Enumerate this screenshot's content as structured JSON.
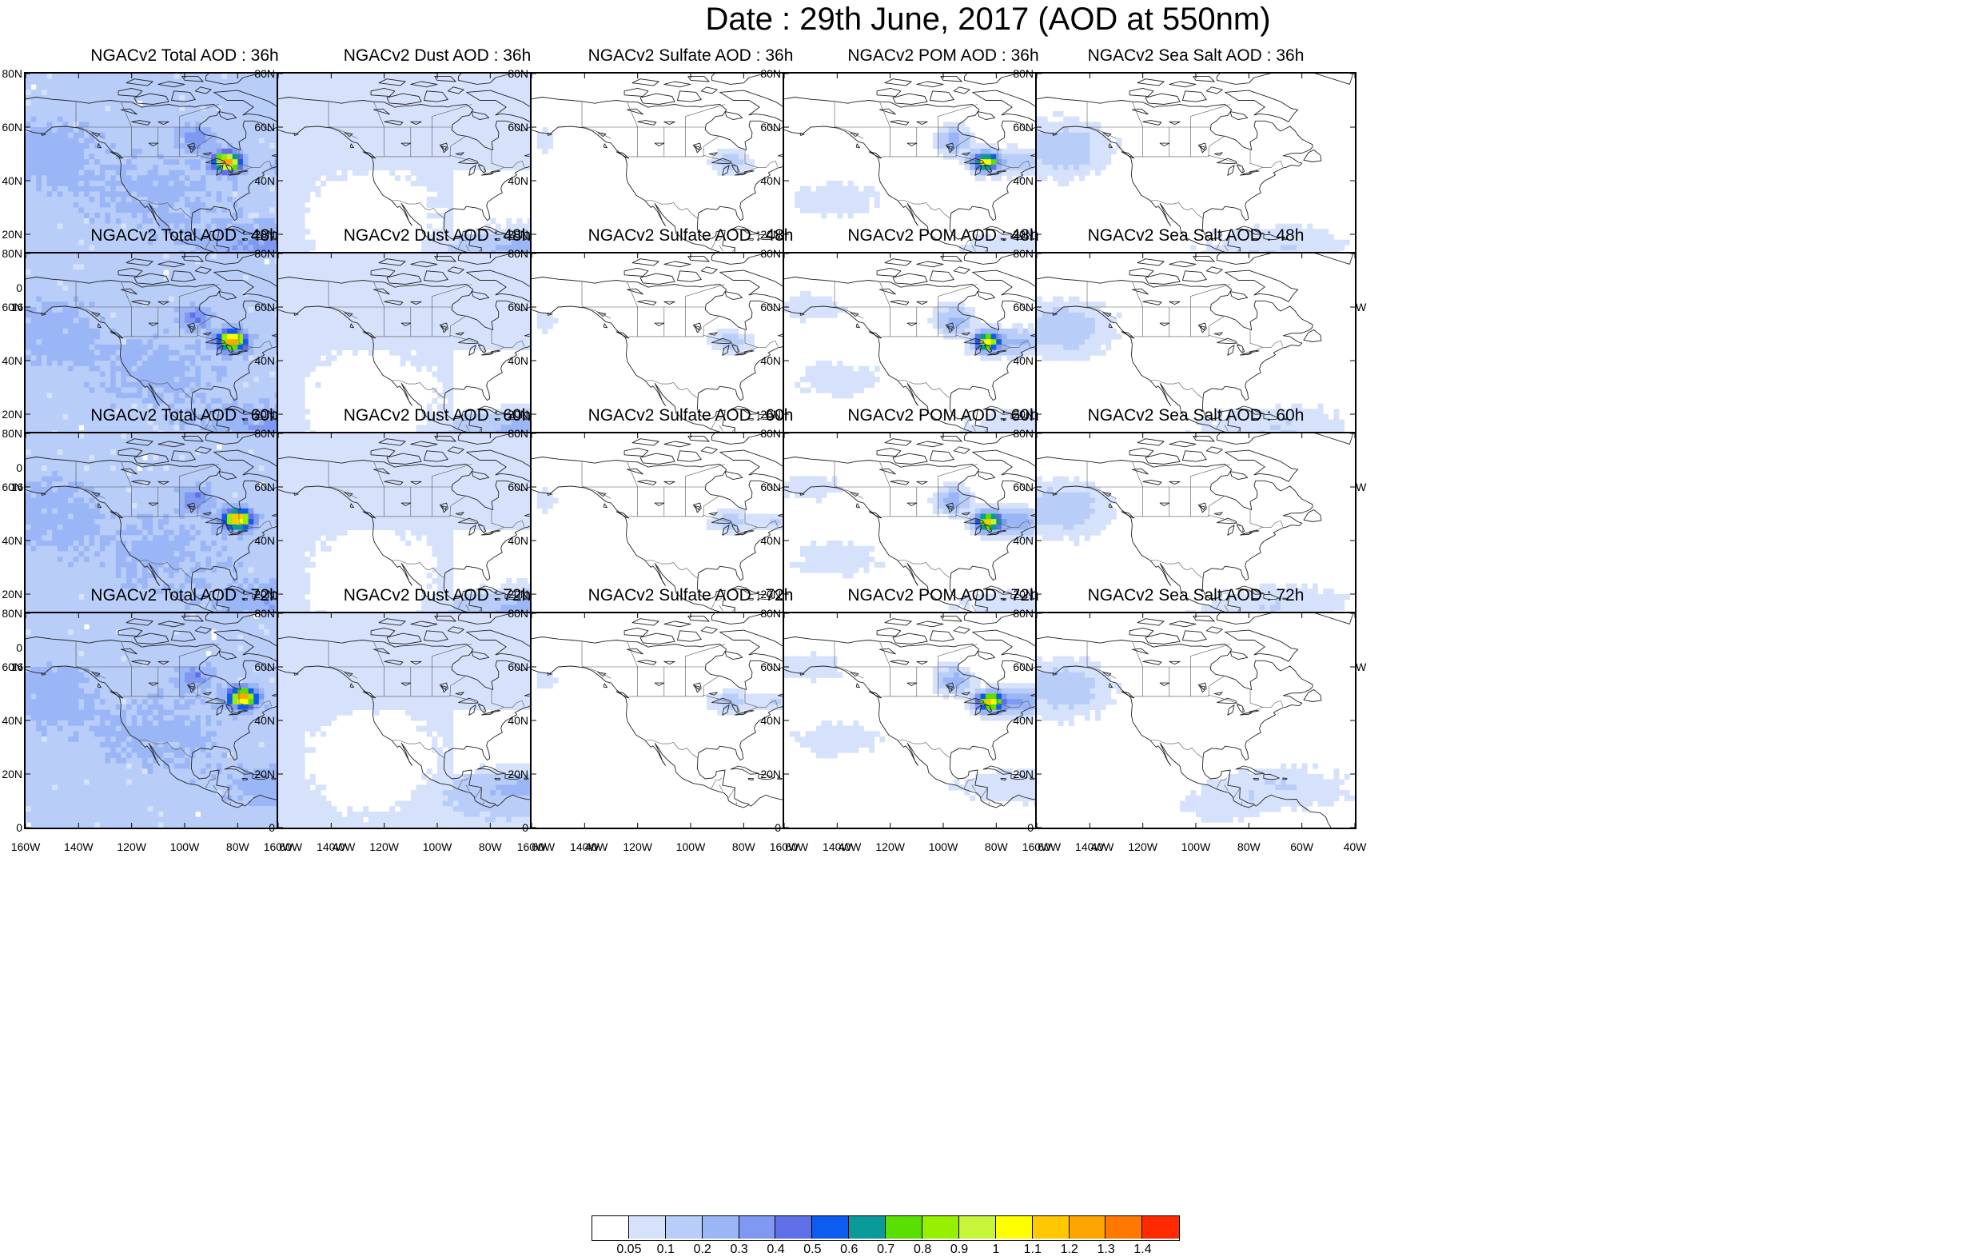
{
  "title": "Date : 29th June, 2017 (AOD at 550nm)",
  "columns": [
    {
      "key": "total",
      "label": "NGACv2 Total AOD"
    },
    {
      "key": "dust",
      "label": "NGACv2 Dust AOD"
    },
    {
      "key": "sulfate",
      "label": "NGACv2 Sulfate AOD"
    },
    {
      "key": "pom",
      "label": "NGACv2 POM AOD"
    },
    {
      "key": "seasalt",
      "label": "NGACv2 Sea Salt AOD"
    }
  ],
  "panels": [
    [
      "NGACv2 Total AOD : 36h",
      "NGACv2 Dust AOD : 36h",
      "NGACv2 Sulfate AOD : 36h",
      "NGACv2 POM AOD : 36h",
      "NGACv2 Sea Salt AOD : 36h"
    ],
    [
      "NGACv2 Total AOD : 48h",
      "NGACv2 Dust AOD : 48h",
      "NGACv2 Sulfate AOD : 48h",
      "NGACv2 POM AOD : 48h",
      "NGACv2 Sea Salt AOD : 48h"
    ],
    [
      "NGACv2 Total AOD : 60h",
      "NGACv2 Dust AOD : 60h",
      "NGACv2 Sulfate AOD : 60h",
      "NGACv2 POM AOD : 60h",
      "NGACv2 Sea Salt AOD : 60h"
    ],
    [
      "NGACv2 Total AOD : 72h",
      "NGACv2 Dust AOD : 72h",
      "NGACv2 Sulfate AOD : 72h",
      "NGACv2 POM AOD : 72h",
      "NGACv2 Sea Salt  AOD : 72h"
    ]
  ],
  "lat_labels": [
    "80N",
    "60N",
    "40N",
    "20N",
    "0"
  ],
  "lon_labels": [
    "160W",
    "140W",
    "120W",
    "100W",
    "80W",
    "60W",
    "40W"
  ],
  "colorbar": {
    "colors": [
      "#ffffff",
      "#d6e2fb",
      "#b8cdf8",
      "#9bb6f6",
      "#7f98f2",
      "#5f6fe8",
      "#0d5cf0",
      "#0a9a9a",
      "#59e000",
      "#97f000",
      "#c7f53a",
      "#ffff00",
      "#ffc800",
      "#ffa500",
      "#ff7800",
      "#ff2a00"
    ],
    "labels": [
      "0.05",
      "0.1",
      "0.2",
      "0.3",
      "0.4",
      "0.5",
      "0.6",
      "0.7",
      "0.8",
      "0.9",
      "1",
      "1.1",
      "1.2",
      "1.3",
      "1.4"
    ]
  }
}
